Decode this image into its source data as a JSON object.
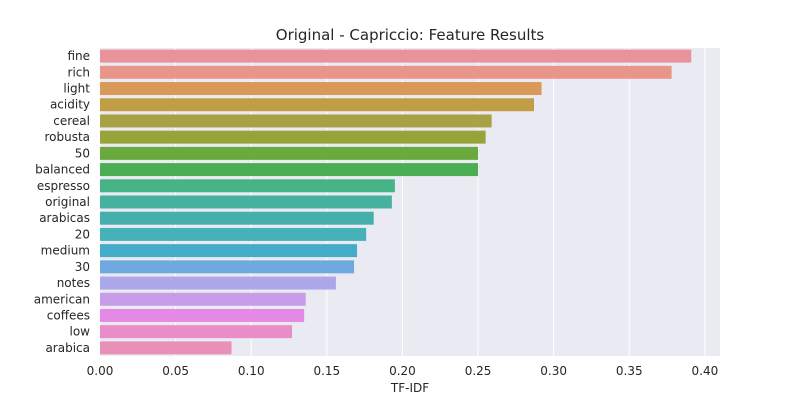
{
  "chart_data": {
    "type": "bar",
    "orientation": "horizontal",
    "title": "Original - Capriccio: Feature Results",
    "xlabel": "TF-IDF",
    "ylabel": "",
    "xlim": [
      0,
      0.41
    ],
    "xticks": [
      "0.00",
      "0.05",
      "0.10",
      "0.15",
      "0.20",
      "0.25",
      "0.30",
      "0.35",
      "0.40"
    ],
    "grid": true,
    "categories": [
      "fine",
      "rich",
      "light",
      "acidity",
      "cereal",
      "robusta",
      "50",
      "balanced",
      "espresso",
      "original",
      "arabicas",
      "20",
      "medium",
      "30",
      "notes",
      "american",
      "coffees",
      "low",
      "arabica"
    ],
    "values": [
      0.391,
      0.378,
      0.292,
      0.287,
      0.259,
      0.255,
      0.25,
      0.25,
      0.195,
      0.193,
      0.181,
      0.176,
      0.17,
      0.168,
      0.156,
      0.136,
      0.135,
      0.127,
      0.087
    ],
    "colors": [
      "#e8939c",
      "#e8968a",
      "#d99a58",
      "#c19e45",
      "#a9a145",
      "#97a43a",
      "#6aa93c",
      "#4bae55",
      "#46b487",
      "#47b19f",
      "#45b0ab",
      "#45b2b8",
      "#44acc8",
      "#70a9e2",
      "#aca6ea",
      "#c99ce8",
      "#e48ae6",
      "#e98cc8",
      "#e990b7"
    ]
  }
}
